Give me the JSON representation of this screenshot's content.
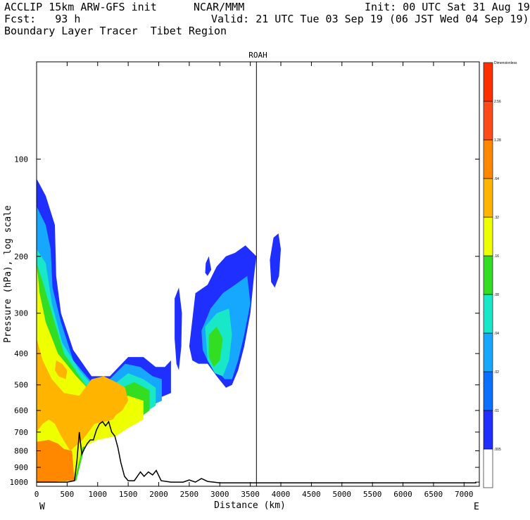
{
  "header": {
    "line1_left": "ACCLIP 15km ARW-GFS init",
    "line1_mid": "NCAR/MMM",
    "line1_right": "Init: 00 UTC Sat 31 Aug 19",
    "line2_left": "Fcst:   93 h",
    "line2_right": "Valid: 21 UTC Tue 03 Sep 19 (06 JST Wed 04 Sep 19)",
    "line3_left": "Boundary Layer Tracer  Tibet Region"
  },
  "chart_data": {
    "type": "heatmap",
    "title": "ROAH",
    "xlabel": "Distance (km)",
    "ylabel": "Pressure (hPa), log scale",
    "x_ticks": [
      0,
      500,
      1000,
      1500,
      2000,
      2500,
      3000,
      3500,
      4000,
      4500,
      5000,
      5500,
      6000,
      6500,
      7000
    ],
    "x_range": [
      0,
      7250
    ],
    "y_ticks": [
      100,
      200,
      300,
      400,
      500,
      600,
      700,
      800,
      900,
      1000
    ],
    "y_range": [
      50,
      1030
    ],
    "y_scale": "log",
    "x_end_labels": {
      "left": "W",
      "right": "E"
    },
    "marker_line_x": 3600,
    "colorbar": {
      "title": "Dimensionless",
      "levels": [
        ".005",
        ".01",
        ".02",
        ".04",
        ".08",
        ".16",
        ".32",
        ".64",
        "1.28",
        "2.56"
      ],
      "colors": [
        "#ffffff",
        "#1f2fff",
        "#0b6fff",
        "#16a8ff",
        "#19e8c8",
        "#33dd22",
        "#eeff00",
        "#ffb400",
        "#ff8800",
        "#ff4a1c",
        "#ff3000"
      ]
    },
    "terrain_profile": {
      "x": [
        0,
        500,
        620,
        660,
        700,
        740,
        780,
        830,
        880,
        930,
        980,
        1030,
        1080,
        1130,
        1180,
        1230,
        1280,
        1330,
        1380,
        1440,
        1500,
        1600,
        1700,
        1760,
        1830,
        1900,
        1960,
        2040,
        2200,
        2400,
        2500,
        2600,
        2700,
        2800,
        2900,
        3000,
        4000,
        5000,
        6000,
        7000,
        7200
      ],
      "p_hPa": [
        1000,
        1000,
        990,
        860,
        700,
        820,
        790,
        760,
        740,
        740,
        690,
        660,
        650,
        670,
        650,
        700,
        720,
        780,
        870,
        960,
        990,
        990,
        930,
        960,
        930,
        950,
        920,
        990,
        1000,
        1000,
        985,
        1000,
        975,
        995,
        1000,
        1005,
        1005,
        1005,
        1005,
        1005,
        1005
      ]
    },
    "tracer_levels_approx": [
      {
        "level": ".01",
        "region": "0-2200 km, 115-1000 hPa; 2250-3600 km, 190-510 hPa; 3800-4000 km, 170-230 hPa"
      },
      {
        "level": ".04",
        "region": "0-2200 km, 140-1000 hPa; 2550-3500 km, 210-480 hPa"
      },
      {
        "level": ".16",
        "region": "0-2100 km, 190-1000 hPa; 2750-3000 km, 330-460 hPa"
      },
      {
        "level": ".32",
        "region": "0-2000 km, 210-1000 hPa"
      },
      {
        "level": ".64",
        "region": "0-1500 km, 350-1000 hPa"
      },
      {
        "level": "1.28",
        "region": "0-600 km, 750-1000 hPa"
      }
    ]
  }
}
